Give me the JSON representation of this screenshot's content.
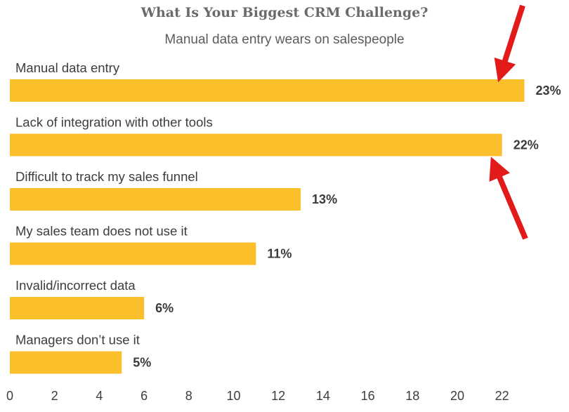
{
  "chart_data": {
    "type": "bar",
    "orientation": "horizontal",
    "title": "What Is Your Biggest CRM Challenge?",
    "subtitle": "Manual data entry wears on salespeople",
    "categories": [
      "Manual data entry",
      "Lack of integration with other tools",
      "Difficult to track my sales funnel",
      "My sales team does not use it",
      "Invalid/incorrect data",
      "Managers don’t use it"
    ],
    "values": [
      23,
      22,
      13,
      11,
      6,
      5
    ],
    "value_labels": [
      "23%",
      "22%",
      "13%",
      "11%",
      "6%",
      "5%"
    ],
    "xlim": [
      0,
      23
    ],
    "xticks": [
      "0",
      "2",
      "4",
      "6",
      "8",
      "10",
      "12",
      "14",
      "16",
      "18",
      "20",
      "22"
    ],
    "grid": false,
    "legend": "none",
    "bar_color": "#fbbf2c",
    "annotations": [
      {
        "type": "arrow",
        "color": "#e21a1a",
        "points_to": "Manual data entry"
      },
      {
        "type": "arrow",
        "color": "#e21a1a",
        "points_to": "Lack of integration with other tools"
      }
    ]
  }
}
